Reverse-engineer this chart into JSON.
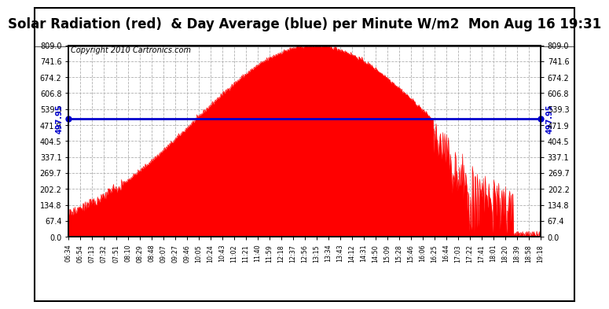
{
  "title": "Solar Radiation (red)  & Day Average (blue) per Minute W/m2  Mon Aug 16 19:31",
  "copyright": "Copyright 2010 Cartronics.com",
  "avg_value": 497.95,
  "y_ticks": [
    0.0,
    67.4,
    134.8,
    202.2,
    269.7,
    337.1,
    404.5,
    471.9,
    539.3,
    606.8,
    674.2,
    741.6,
    809.0
  ],
  "ymax": 809.0,
  "ymin": 0.0,
  "background_color": "#ffffff",
  "plot_bg_color": "#ffffff",
  "red_color": "#ff0000",
  "blue_color": "#0000cc",
  "grid_color": "#b0b0b0",
  "title_fontsize": 12,
  "copyright_fontsize": 7,
  "x_tick_labels": [
    "06:34",
    "06:54",
    "07:13",
    "07:32",
    "07:51",
    "08:10",
    "08:29",
    "08:48",
    "09:07",
    "09:27",
    "09:46",
    "10:05",
    "10:24",
    "10:43",
    "11:02",
    "11:21",
    "11:40",
    "11:59",
    "12:18",
    "12:37",
    "12:56",
    "13:15",
    "13:34",
    "13:43",
    "14:12",
    "14:31",
    "14:50",
    "15:09",
    "15:28",
    "15:46",
    "16:06",
    "16:25",
    "16:44",
    "17:03",
    "17:22",
    "17:41",
    "18:01",
    "18:20",
    "18:39",
    "18:58",
    "19:18"
  ]
}
